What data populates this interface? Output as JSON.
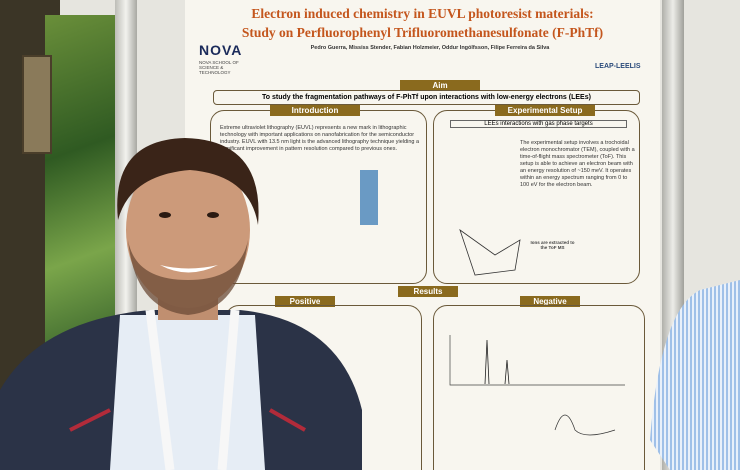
{
  "poster": {
    "title_line1": "Electron induced chemistry in EUVL photoresist materials:",
    "title_line2": "Study on Perfluorophenyl Trifluoromethanesulfonate (F-PhTf)",
    "authors": "Pedro Guerra, Mississ Stender, Fabian Holzmeier, Oddur Ingólfsson, Filipe Ferreira da Silva",
    "logo": "NOVA",
    "logo_sub": "NOVA SCHOOL OF SCIENCE & TECHNOLOGY",
    "partner_logo": "LEAP-LEELIS",
    "aim": {
      "heading": "Aim",
      "text": "To study the fragmentation pathways of F-PhTf upon interactions with low-energy electrons (LEEs)"
    },
    "introduction": {
      "heading": "Introduction",
      "text": "Extreme ultraviolet lithography (EUVL) represents a new mark in lithographic technology with important applications on nanofabrication for the semiconductor industry. EUVL with 13.5 nm light is the advanced lithography technique yielding a significant improvement in pattern resolution compared to previous ones."
    },
    "setup": {
      "heading": "Experimental Setup",
      "subheading": "LEEs interactions with gas phase targets",
      "text": "The experimental setup involves a trochoidal electron monochromator (TEM), coupled with a time-of-flight mass spectrometer (ToF). This setup is able to achieve an electron beam with an energy resolution of ~150 meV. It operates within an energy spectrum ranging from 0 to 100 eV for the electron beam.",
      "burst": "Ions are extracted to the ToF MS"
    },
    "results": {
      "heading": "Results",
      "positive": "Positive",
      "negative": "Negative"
    }
  }
}
